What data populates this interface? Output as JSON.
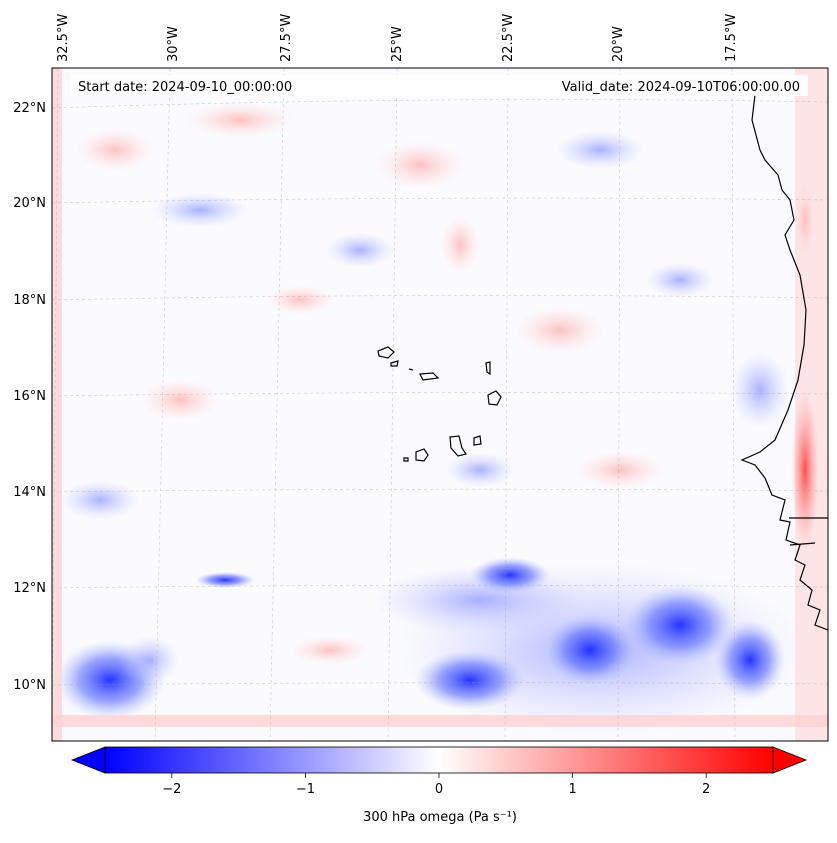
{
  "map": {
    "start_date_label": "Start date: 2024-09-10_00:00:00",
    "valid_date_label": "Valid_date: 2024-09-10T06:00:00.00",
    "lon_labels": [
      "32.5°W",
      "30°W",
      "27.5°W",
      "25°W",
      "22.5°W",
      "20°W",
      "17.5°W"
    ],
    "lat_labels": [
      "22°N",
      "20°N",
      "18°N",
      "16°N",
      "14°N",
      "12°N",
      "10°N"
    ],
    "colormap": [
      "#0000ff",
      "#ffffff",
      "#ff0000"
    ],
    "coastline_color": "#000000"
  },
  "colorbar": {
    "label": "300 hPa omega (Pa s⁻¹)",
    "ticks": [
      "−2",
      "−1",
      "0",
      "1",
      "2"
    ],
    "tick_values": [
      -2,
      -1,
      0,
      1,
      2
    ],
    "range": [
      -2.5,
      2.5
    ],
    "extend": "both"
  }
}
